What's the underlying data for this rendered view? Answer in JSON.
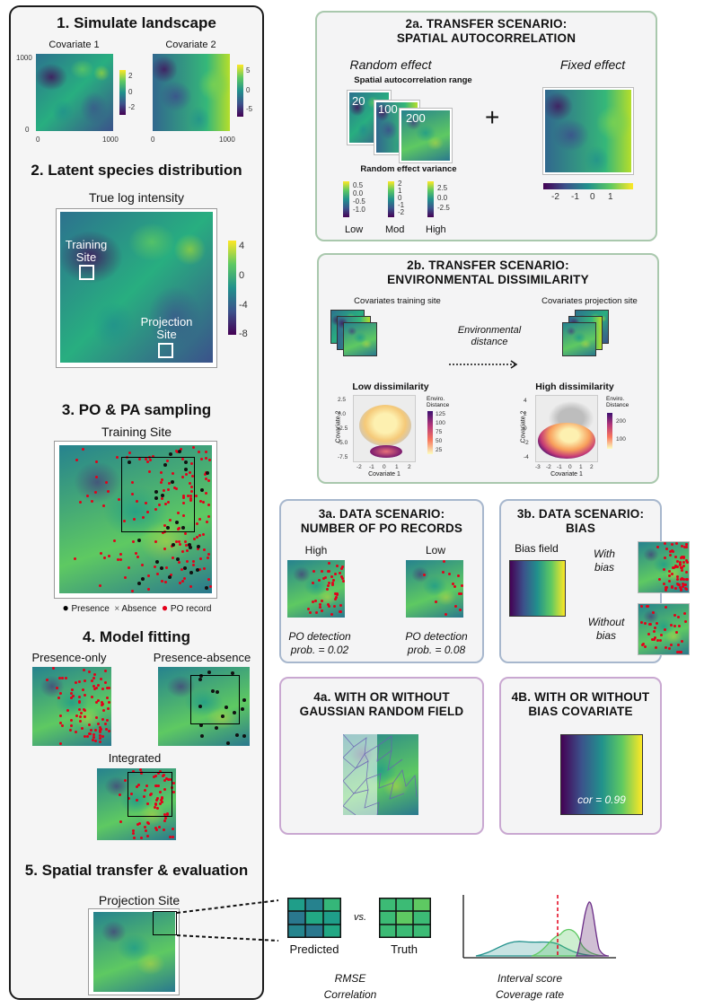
{
  "step1": {
    "title": "1. Simulate landscape",
    "cov1": "Covariate 1",
    "cov2": "Covariate 2",
    "ticks_axis": [
      "1000",
      "0",
      "1000",
      "0",
      "1000"
    ],
    "cb1": [
      "2",
      "0",
      "-2"
    ],
    "cb2": [
      "5",
      "0",
      "-5"
    ]
  },
  "step2": {
    "title": "2. Latent species distribution",
    "subtitle": "True log intensity",
    "training": "Training Site",
    "training_l1": "Training",
    "training_l2": "Site",
    "projection_l1": "Projection",
    "projection_l2": "Site",
    "cb": [
      "4",
      "0",
      "-4",
      "-8"
    ]
  },
  "step3": {
    "title": "3. PO & PA sampling",
    "subtitle": "Training Site",
    "legend_presence": "Presence",
    "legend_absence": "Absence",
    "legend_po": "PO record"
  },
  "step4": {
    "title": "4. Model fitting",
    "po": "Presence-only",
    "pa": "Presence-absence",
    "int": "Integrated"
  },
  "step5": {
    "title": "5. Spatial transfer & evaluation",
    "proj": "Projection Site",
    "predicted": "Predicted",
    "vs": "vs.",
    "truth": "Truth",
    "rmse": "RMSE",
    "correlation": "Correlation",
    "interval": "Interval score",
    "coverage": "Coverage rate"
  },
  "s2a": {
    "title_l1": "2a. TRANSFER SCENARIO:",
    "title_l2": "SPATIAL AUTOCORRELATION",
    "random": "Random effect",
    "fixed": "Fixed effect",
    "range": "Spatial autocorrelation range",
    "r1": "20",
    "r2": "100",
    "r3": "200",
    "variance": "Random effect variance",
    "low": "Low",
    "mod": "Mod",
    "high": "High",
    "plus": "+",
    "cb_low": [
      "0.5",
      "0.0",
      "-0.5",
      "-1.0"
    ],
    "cb_mod": [
      "2",
      "1",
      "0",
      "-1",
      "-2"
    ],
    "cb_high": [
      "2.5",
      "0.0",
      "-2.5"
    ],
    "fixed_ticks": [
      "-2",
      "-1",
      "0",
      "1"
    ]
  },
  "s2b": {
    "title_l1": "2b. TRANSFER SCENARIO:",
    "title_l2": "ENVIRONMENTAL DISSIMILARITY",
    "cov_train": "Covariates training site",
    "cov_proj": "Covariates projection site",
    "env_l1": "Environmental",
    "env_l2": "distance",
    "low": "Low dissimilarity",
    "high": "High dissimilarity",
    "xlab": "Covariate 1",
    "ylab": "Covariate 2",
    "legend_l1": "Enviro.",
    "legend_l2": "Distance",
    "low_cb": [
      "125",
      "100",
      "75",
      "50",
      "25"
    ],
    "high_cb": [
      "200",
      "100"
    ],
    "low_y": [
      "2.5",
      "0.0",
      "-2.5",
      "-5.0",
      "-7.5"
    ],
    "low_x": [
      "-2",
      "-1",
      "0",
      "1",
      "2"
    ],
    "high_y": [
      "4",
      "2",
      "0",
      "-2",
      "-4"
    ],
    "high_x": [
      "-3",
      "-2",
      "-1",
      "0",
      "1",
      "2"
    ]
  },
  "s3a": {
    "title_l1": "3a. DATA SCENARIO:",
    "title_l2": "NUMBER OF PO RECORDS",
    "high": "High",
    "low": "Low",
    "det_l1": "PO detection",
    "det_high_l2": "prob. = 0.02",
    "det_low_l2": "prob. = 0.08"
  },
  "s3b": {
    "title_l1": "3b. DATA SCENARIO:",
    "title_l2": "BIAS",
    "bias_field": "Bias field",
    "with_l1": "With",
    "with_l2": "bias",
    "without_l1": "Without",
    "without_l2": "bias"
  },
  "s4a": {
    "title_l1": "4a. WITH OR WITHOUT",
    "title_l2": "GAUSSIAN RANDOM FIELD"
  },
  "s4b": {
    "title_l1": "4B. WITH OR WITHOUT",
    "title_l2": "BIAS COVARIATE",
    "cor": "cor = 0.99"
  },
  "colors": {
    "viridis_dark": "#440154",
    "viridis_mid": "#21918c",
    "viridis_light": "#fde725",
    "po_record": "#e4001a"
  }
}
